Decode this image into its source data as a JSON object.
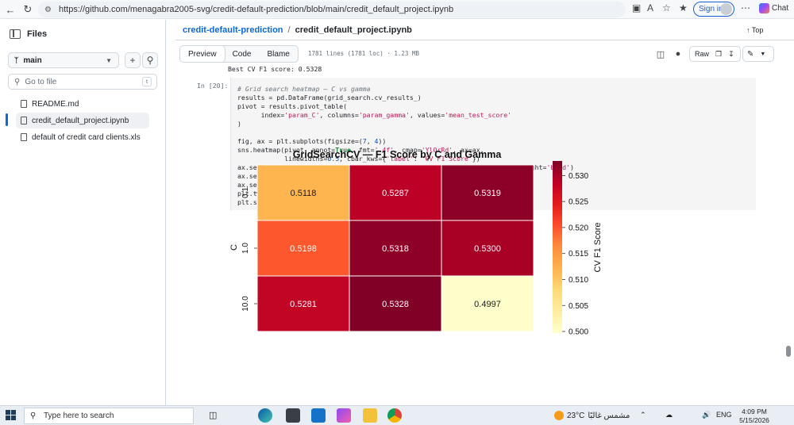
{
  "browser": {
    "url": "https://github.com/menagabra2005-svg/credit-default-prediction/blob/main/credit_default_project.ipynb",
    "signin_label": "Sign in",
    "chat_label": "Chat"
  },
  "sidebar": {
    "title": "Files",
    "branch": "main",
    "goto_placeholder": "Go to file",
    "goto_kbd": "t",
    "files": [
      "README.md",
      "credit_default_project.ipynb",
      "default of credit card clients.xls"
    ]
  },
  "breadcrumb": {
    "repo": "credit-default-prediction",
    "sep": "/",
    "file": "credit_default_project.ipynb"
  },
  "top_label": "Top",
  "tabs": [
    "Preview",
    "Code",
    "Blame"
  ],
  "file_meta": "1781 lines (1781 loc) · 1.23 MB",
  "raw_label": "Raw",
  "notebook": {
    "previous_output": "Best CV F1 score: 0.5328",
    "prompt": "In [20]:"
  },
  "chart_data": {
    "type": "heatmap",
    "title": "GridSearchCV — F1 Score by C and Gamma",
    "xlabel": "",
    "ylabel": "C",
    "row_labels": [
      "0.1",
      "1.0",
      "10.0"
    ],
    "values": [
      [
        0.5118,
        0.5287,
        0.5319
      ],
      [
        0.5198,
        0.5318,
        0.53
      ],
      [
        0.5281,
        0.5328,
        0.4997
      ]
    ],
    "value_labels": [
      [
        "0.5118",
        "0.5287",
        "0.5319"
      ],
      [
        "0.5198",
        "0.5318",
        "0.5300"
      ],
      [
        "0.5281",
        "0.5328",
        "0.4997"
      ]
    ],
    "colorbar_label": "CV F1 Score",
    "colorbar_ticks": [
      "0.530",
      "0.525",
      "0.520",
      "0.515",
      "0.510",
      "0.505",
      "0.500"
    ],
    "colorbar_range": [
      0.4997,
      0.5328
    ],
    "cmap": "YlOrRd"
  },
  "taskbar": {
    "search_placeholder": "Type here to search",
    "temperature": "23°C",
    "weather_text": "مشمس غالبًا",
    "language": "ENG",
    "time": "4:09 PM",
    "date": "5/15/2026"
  }
}
